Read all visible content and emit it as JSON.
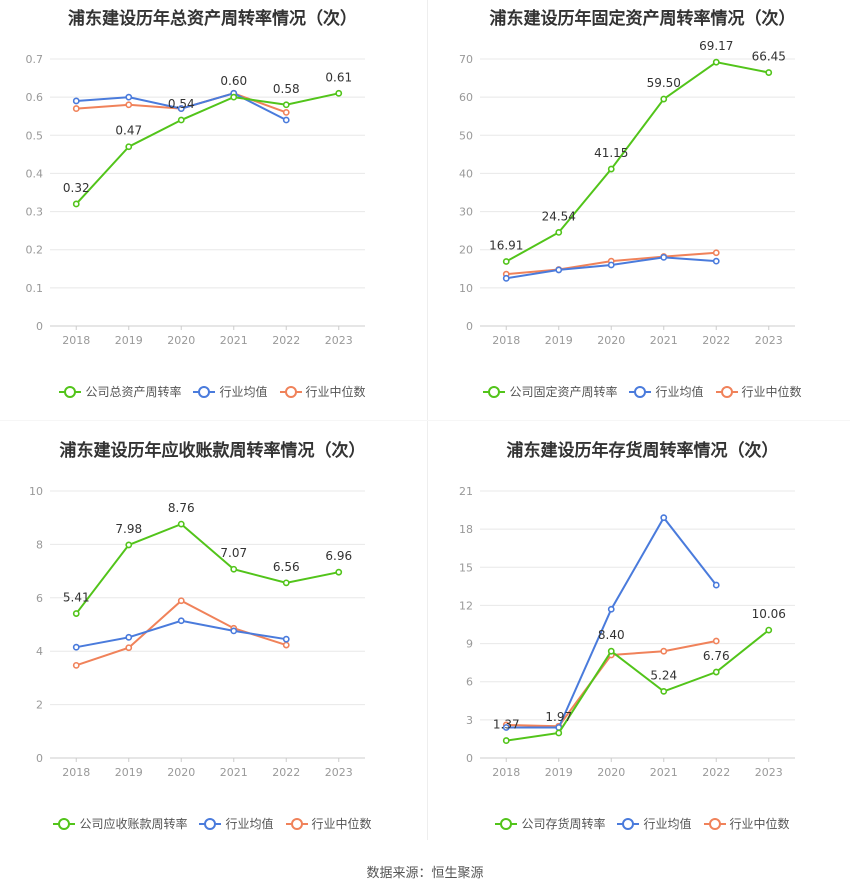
{
  "source_label": "数据来源：恒生聚源",
  "colors": {
    "company": "#52c41a",
    "avg": "#4a7bdc",
    "median": "#f0825a"
  },
  "charts": [
    {
      "title": "浦东建设历年总资产周转率情况（次）",
      "legend": [
        "公司总资产周转率",
        "行业均值",
        "行业中位数"
      ],
      "yticks": [
        "0",
        "0.1",
        "0.2",
        "0.3",
        "0.4",
        "0.5",
        "0.6",
        "0.7"
      ]
    },
    {
      "title": "浦东建设历年固定资产周转率情况（次）",
      "legend": [
        "公司固定资产周转率",
        "行业均值",
        "行业中位数"
      ],
      "yticks": [
        "0",
        "10",
        "20",
        "30",
        "40",
        "50",
        "60",
        "70"
      ]
    },
    {
      "title": "浦东建设历年应收账款周转率情况（次）",
      "legend": [
        "公司应收账款周转率",
        "行业均值",
        "行业中位数"
      ],
      "yticks": [
        "0",
        "2",
        "4",
        "6",
        "8",
        "10"
      ]
    },
    {
      "title": "浦东建设历年存货周转率情况（次）",
      "legend": [
        "公司存货周转率",
        "行业均值",
        "行业中位数"
      ],
      "yticks": [
        "0",
        "3",
        "6",
        "9",
        "12",
        "15",
        "18",
        "21"
      ]
    }
  ],
  "chart_data": [
    {
      "type": "line",
      "title": "浦东建设历年总资产周转率情况（次）",
      "categories": [
        "2018",
        "2019",
        "2020",
        "2021",
        "2022",
        "2023"
      ],
      "ylim": [
        0,
        0.7
      ],
      "grid": true,
      "legend_position": "bottom",
      "series": [
        {
          "name": "公司总资产周转率",
          "values": [
            0.32,
            0.47,
            0.54,
            0.6,
            0.58,
            0.61
          ],
          "labels": [
            "0.32",
            "0.47",
            "0.54",
            "0.60",
            "0.58",
            "0.61"
          ]
        },
        {
          "name": "行业均值",
          "values": [
            0.59,
            0.6,
            0.57,
            0.61,
            0.54,
            null
          ]
        },
        {
          "name": "行业中位数",
          "values": [
            0.57,
            0.58,
            0.57,
            0.61,
            0.56,
            null
          ]
        }
      ]
    },
    {
      "type": "line",
      "title": "浦东建设历年固定资产周转率情况（次）",
      "categories": [
        "2018",
        "2019",
        "2020",
        "2021",
        "2022",
        "2023"
      ],
      "ylim": [
        0,
        70
      ],
      "grid": true,
      "legend_position": "bottom",
      "series": [
        {
          "name": "公司固定资产周转率",
          "values": [
            16.91,
            24.54,
            41.15,
            59.5,
            69.17,
            66.45
          ],
          "labels": [
            "16.91",
            "24.54",
            "41.15",
            "59.50",
            "69.17",
            "66.45"
          ]
        },
        {
          "name": "行业均值",
          "values": [
            12.5,
            14.7,
            16.0,
            18.0,
            17.0,
            null
          ]
        },
        {
          "name": "行业中位数",
          "values": [
            13.6,
            14.8,
            17.0,
            18.2,
            19.2,
            null
          ]
        }
      ]
    },
    {
      "type": "line",
      "title": "浦东建设历年应收账款周转率情况（次）",
      "categories": [
        "2018",
        "2019",
        "2020",
        "2021",
        "2022",
        "2023"
      ],
      "ylim": [
        0,
        10
      ],
      "grid": true,
      "legend_position": "bottom",
      "series": [
        {
          "name": "公司应收账款周转率",
          "values": [
            5.41,
            7.98,
            8.76,
            7.07,
            6.56,
            6.96
          ],
          "labels": [
            "5.41",
            "7.98",
            "8.76",
            "7.07",
            "6.56",
            "6.96"
          ]
        },
        {
          "name": "行业均值",
          "values": [
            4.15,
            4.52,
            5.14,
            4.76,
            4.45,
            null
          ]
        },
        {
          "name": "行业中位数",
          "values": [
            3.47,
            4.13,
            5.89,
            4.86,
            4.23,
            null
          ]
        }
      ]
    },
    {
      "type": "line",
      "title": "浦东建设历年存货周转率情况（次）",
      "categories": [
        "2018",
        "2019",
        "2020",
        "2021",
        "2022",
        "2023"
      ],
      "ylim": [
        0,
        21
      ],
      "grid": true,
      "legend_position": "bottom",
      "series": [
        {
          "name": "公司存货周转率",
          "values": [
            1.37,
            1.97,
            8.4,
            5.24,
            6.76,
            10.06
          ],
          "labels": [
            "1.37",
            "1.97",
            "8.40",
            "5.24",
            "6.76",
            "10.06"
          ]
        },
        {
          "name": "行业均值",
          "values": [
            2.4,
            2.4,
            11.7,
            18.9,
            13.6,
            null
          ]
        },
        {
          "name": "行业中位数",
          "values": [
            2.6,
            2.5,
            8.1,
            8.4,
            9.2,
            null
          ]
        }
      ]
    }
  ]
}
